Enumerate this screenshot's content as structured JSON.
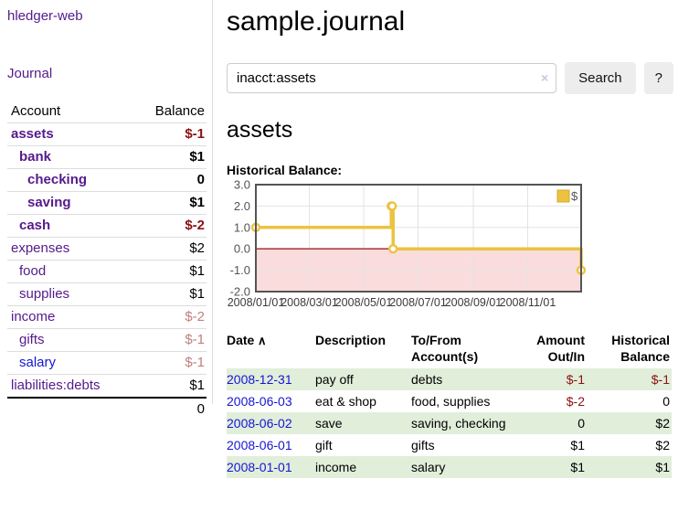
{
  "app": {
    "brand": "hledger-web"
  },
  "sidebar": {
    "journal_link": "Journal",
    "accounts": {
      "headers": {
        "account": "Account",
        "balance": "Balance"
      },
      "rows": [
        {
          "name": "assets",
          "depth": 0,
          "bold": true,
          "blue": false,
          "balance": "$-1",
          "cls": "neg"
        },
        {
          "name": "bank",
          "depth": 1,
          "bold": true,
          "blue": false,
          "balance": "$1",
          "cls": ""
        },
        {
          "name": "checking",
          "depth": 2,
          "bold": true,
          "blue": false,
          "balance": "0",
          "cls": ""
        },
        {
          "name": "saving",
          "depth": 2,
          "bold": true,
          "blue": false,
          "balance": "$1",
          "cls": ""
        },
        {
          "name": "cash",
          "depth": 1,
          "bold": true,
          "blue": false,
          "balance": "$-2",
          "cls": "neg"
        },
        {
          "name": "expenses",
          "depth": 0,
          "bold": false,
          "blue": false,
          "balance": "$2",
          "cls": ""
        },
        {
          "name": "food",
          "depth": 1,
          "bold": false,
          "blue": false,
          "balance": "$1",
          "cls": ""
        },
        {
          "name": "supplies",
          "depth": 1,
          "bold": false,
          "blue": false,
          "balance": "$1",
          "cls": ""
        },
        {
          "name": "income",
          "depth": 0,
          "bold": false,
          "blue": false,
          "balance": "$-2",
          "cls": "softneg"
        },
        {
          "name": "gifts",
          "depth": 1,
          "bold": false,
          "blue": false,
          "balance": "$-1",
          "cls": "softneg"
        },
        {
          "name": "salary",
          "depth": 1,
          "bold": false,
          "blue": true,
          "balance": "$-1",
          "cls": "softneg"
        },
        {
          "name": "liabilities:debts",
          "depth": 0,
          "bold": false,
          "blue": false,
          "balance": "$1",
          "cls": ""
        }
      ],
      "total": "0"
    }
  },
  "main": {
    "title": "sample.journal",
    "search": {
      "value": "inacct:assets",
      "clear_icon": "×",
      "button_label": "Search",
      "help_label": "?"
    },
    "account_heading": "assets",
    "chart_title": "Historical Balance:"
  },
  "chart_data": {
    "type": "line",
    "title": "Historical Balance:",
    "series": [
      {
        "name": "$",
        "steps": true,
        "color": "#edc240",
        "points": [
          [
            "2008/01/01",
            1
          ],
          [
            "2008/06/01",
            2
          ],
          [
            "2008/06/02",
            2
          ],
          [
            "2008/06/03",
            0
          ],
          [
            "2008/12/31",
            -1
          ]
        ]
      }
    ],
    "ylim": [
      -2,
      3
    ],
    "yticks": [
      "3.0",
      "2.0",
      "1.0",
      "0.0",
      "-1.0",
      "-2.0"
    ],
    "xticks": [
      "2008/01/01",
      "2008/03/01",
      "2008/05/01",
      "2008/07/01",
      "2008/09/01",
      "2008/11/01"
    ],
    "xrange": [
      "2008/01/01",
      "2008/12/31"
    ],
    "legend": "$",
    "legend_position": "top-right",
    "grid": true,
    "colors": {
      "line": "#edc240",
      "marker_fill": "#ffffff",
      "legend_box_border": "#d3ab2c",
      "negative_fill": "#fbdcdc",
      "zero_line": "#a02020",
      "border": "#545454",
      "gridline": "#e3e3e3",
      "tick_text": "#545454"
    }
  },
  "register": {
    "sort_icon": "∧",
    "headers": [
      {
        "l1": "Date",
        "l2": "",
        "align": "left",
        "sortable": true
      },
      {
        "l1": "Description",
        "l2": "",
        "align": "left",
        "sortable": false
      },
      {
        "l1": "To/From",
        "l2": "Account(s)",
        "align": "left",
        "sortable": false
      },
      {
        "l1": "Amount",
        "l2": "Out/In",
        "align": "right",
        "sortable": false
      },
      {
        "l1": "Historical",
        "l2": "Balance",
        "align": "right",
        "sortable": false
      }
    ],
    "rows": [
      {
        "date": "2008-12-31",
        "description": "pay off",
        "accounts": "debts",
        "amount": "$-1",
        "amount_neg": true,
        "balance": "$-1",
        "balance_neg": true
      },
      {
        "date": "2008-06-03",
        "description": "eat & shop",
        "accounts": "food, supplies",
        "amount": "$-2",
        "amount_neg": true,
        "balance": "0",
        "balance_neg": false
      },
      {
        "date": "2008-06-02",
        "description": "save",
        "accounts": "saving, checking",
        "amount": "0",
        "amount_neg": false,
        "balance": "$2",
        "balance_neg": false
      },
      {
        "date": "2008-06-01",
        "description": "gift",
        "accounts": "gifts",
        "amount": "$1",
        "amount_neg": false,
        "balance": "$2",
        "balance_neg": false
      },
      {
        "date": "2008-01-01",
        "description": "income",
        "accounts": "salary",
        "amount": "$1",
        "amount_neg": false,
        "balance": "$1",
        "balance_neg": false
      }
    ]
  }
}
